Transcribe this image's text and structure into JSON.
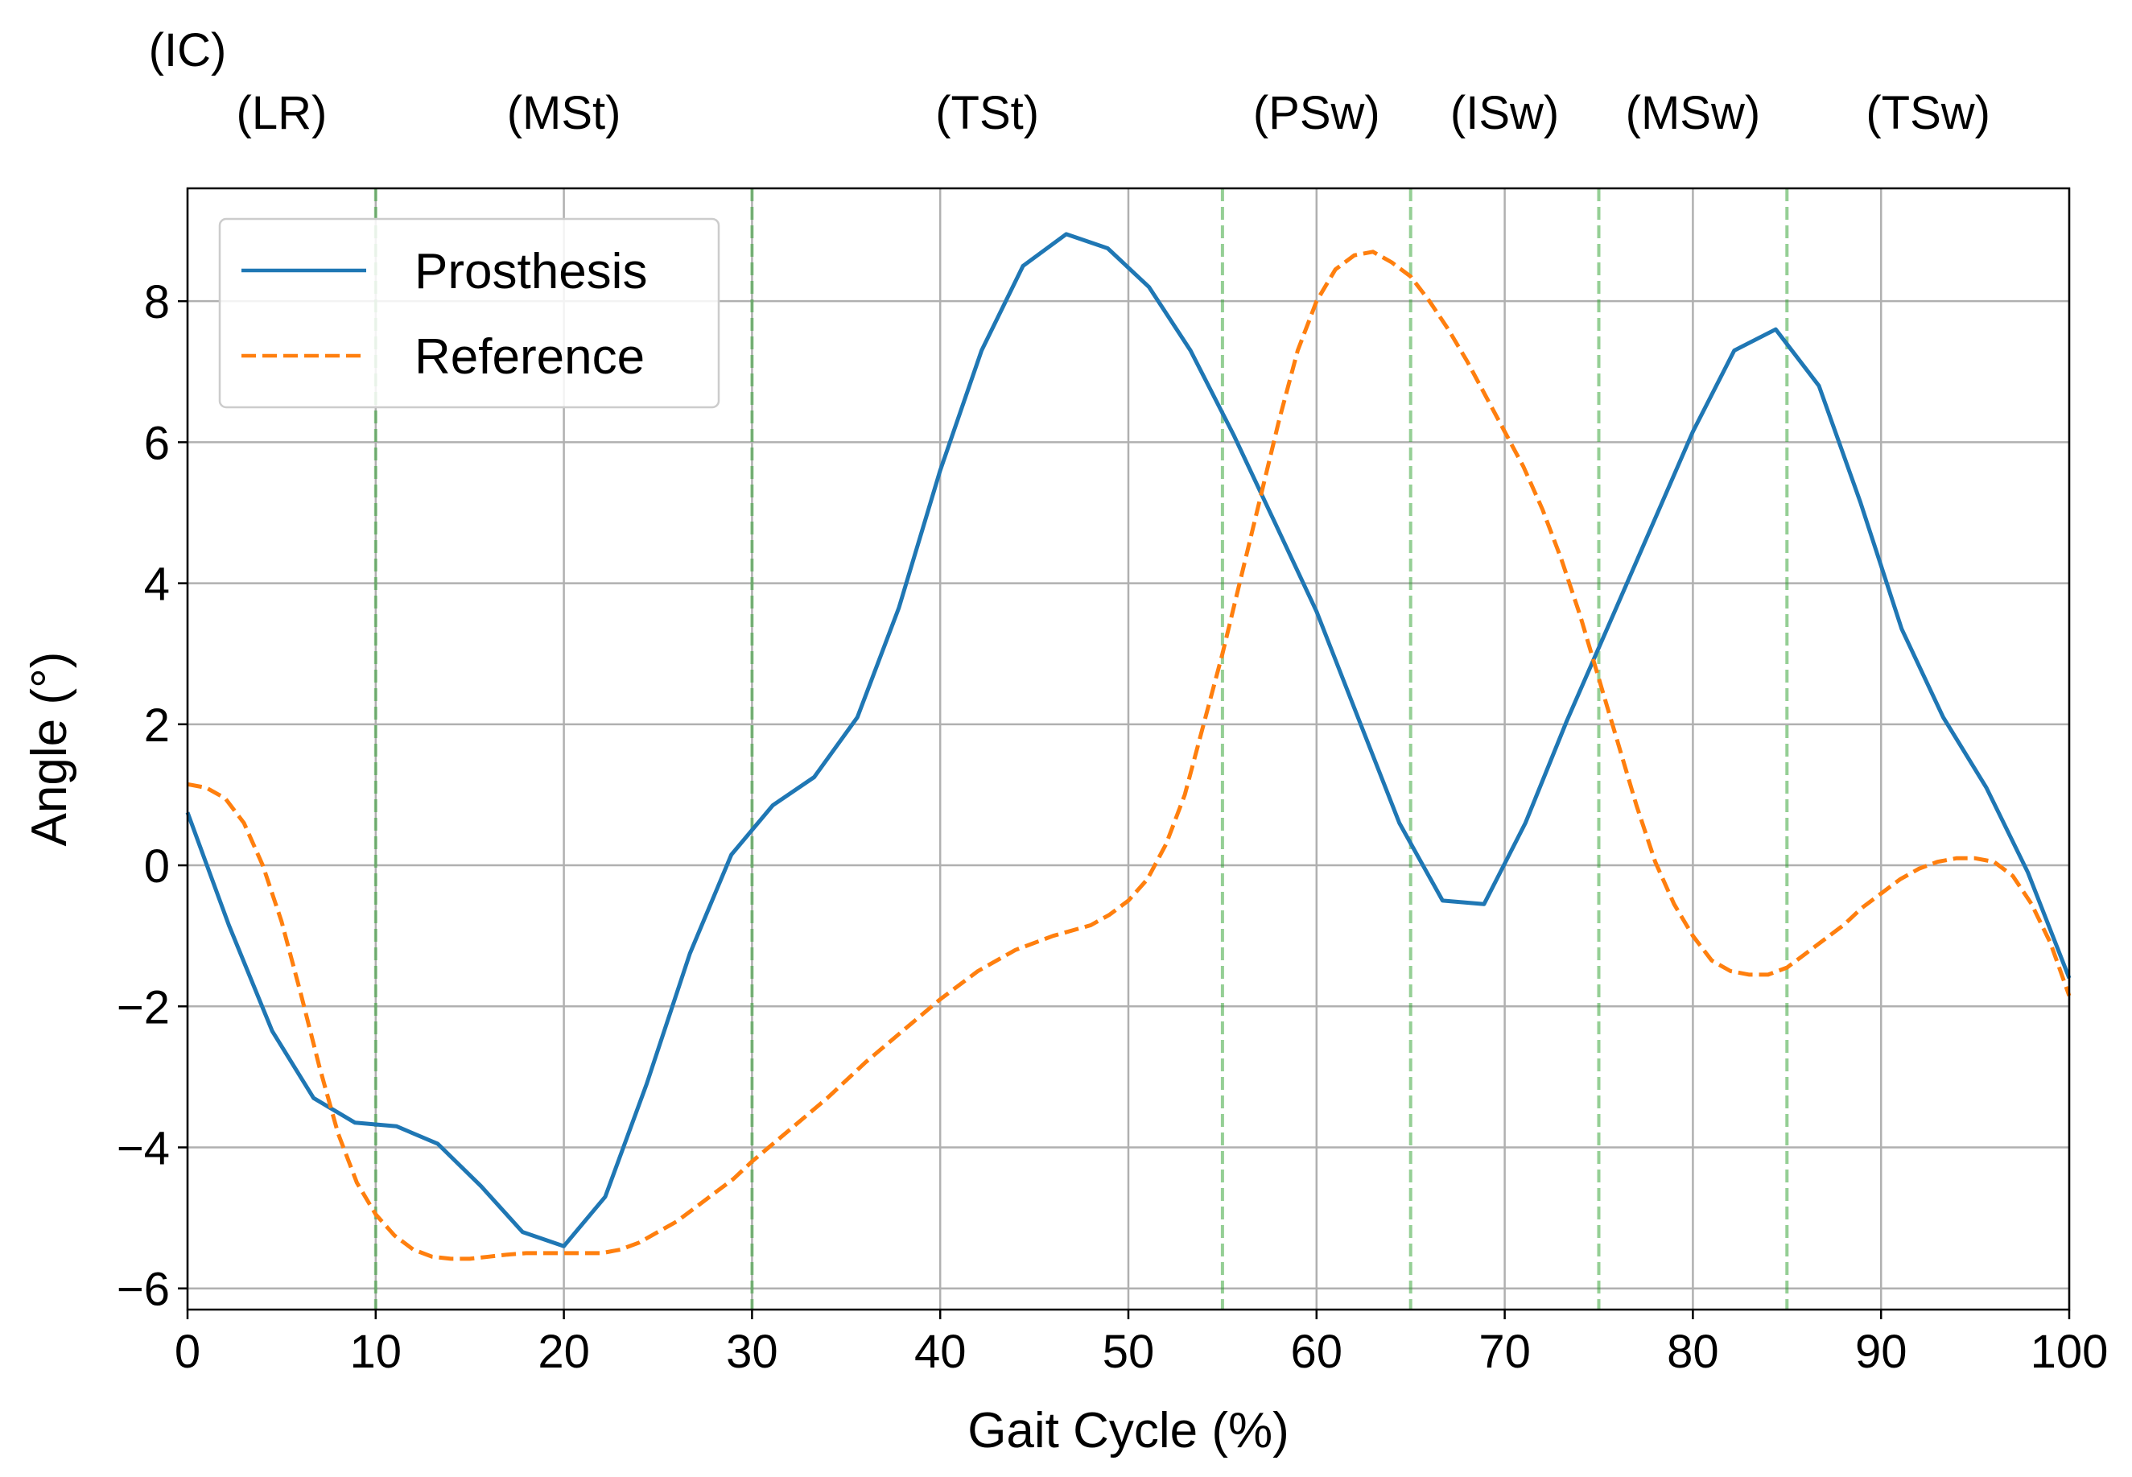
{
  "chart_data": {
    "type": "line",
    "xlabel": "Gait Cycle (%)",
    "ylabel": "Angle (°)",
    "xlim": [
      0,
      100
    ],
    "ylim": [
      -6.3,
      9.6
    ],
    "x_ticks": [
      0,
      10,
      20,
      30,
      40,
      50,
      60,
      70,
      80,
      90,
      100
    ],
    "y_ticks": [
      -6,
      -4,
      -2,
      0,
      2,
      4,
      6,
      8
    ],
    "y_tick_labels": [
      "−6",
      "−4",
      "−2",
      "0",
      "2",
      "4",
      "6",
      "8"
    ],
    "grid": true,
    "legend_position": "top-left",
    "series": [
      {
        "name": "Prosthesis",
        "style": "solid",
        "color": "#1f77b4",
        "x": [
          0,
          2.2,
          4.5,
          6.7,
          8.9,
          11.1,
          13.3,
          15.6,
          17.8,
          20.0,
          22.2,
          24.4,
          26.7,
          28.9,
          31.1,
          33.3,
          35.6,
          37.8,
          40.0,
          42.2,
          44.4,
          46.7,
          48.9,
          51.1,
          53.3,
          55.6,
          57.8,
          60.0,
          62.2,
          64.4,
          66.7,
          68.9,
          71.1,
          73.3,
          75.6,
          77.8,
          80.0,
          82.2,
          84.4,
          86.7,
          88.9,
          91.1,
          93.3,
          95.6,
          97.8,
          100.0
        ],
        "y": [
          0.75,
          -0.85,
          -2.35,
          -3.3,
          -3.65,
          -3.7,
          -3.95,
          -4.55,
          -5.2,
          -5.4,
          -4.7,
          -3.1,
          -1.25,
          0.15,
          0.85,
          1.25,
          2.1,
          3.65,
          5.6,
          7.3,
          8.5,
          8.95,
          8.75,
          8.2,
          7.3,
          6.1,
          4.85,
          3.6,
          2.1,
          0.6,
          -0.5,
          -0.55,
          0.6,
          2.05,
          3.45,
          4.8,
          6.15,
          7.3,
          7.6,
          6.8,
          5.15,
          3.35,
          2.1,
          1.1,
          -0.1,
          -1.6
        ]
      },
      {
        "name": "Reference",
        "style": "dashed",
        "color": "#ff7f0e",
        "x": [
          0,
          1,
          2,
          3,
          4,
          5,
          6,
          7,
          8,
          9,
          10,
          11,
          12,
          13,
          14,
          15,
          16,
          17,
          18,
          19,
          20,
          21,
          22,
          23,
          24,
          25,
          26,
          27,
          28,
          29,
          30,
          32,
          34,
          36,
          38,
          40,
          42,
          44,
          46,
          48,
          49,
          50,
          51,
          52,
          53,
          54,
          55,
          56,
          57,
          58,
          59,
          60,
          61,
          62,
          63,
          64,
          65,
          66,
          67,
          68,
          69,
          70,
          71,
          72,
          73,
          74,
          75,
          76,
          77,
          78,
          79,
          80,
          81,
          82,
          83,
          84,
          85,
          86,
          87,
          88,
          89,
          90,
          91,
          92,
          93,
          94,
          95,
          96,
          97,
          98,
          99,
          100
        ],
        "y": [
          1.15,
          1.1,
          0.95,
          0.6,
          0.0,
          -0.8,
          -1.8,
          -2.85,
          -3.8,
          -4.5,
          -4.95,
          -5.25,
          -5.45,
          -5.55,
          -5.58,
          -5.58,
          -5.55,
          -5.52,
          -5.5,
          -5.5,
          -5.5,
          -5.5,
          -5.5,
          -5.45,
          -5.35,
          -5.2,
          -5.05,
          -4.85,
          -4.65,
          -4.45,
          -4.2,
          -3.75,
          -3.3,
          -2.8,
          -2.35,
          -1.9,
          -1.5,
          -1.2,
          -1.0,
          -0.85,
          -0.7,
          -0.5,
          -0.2,
          0.3,
          1.0,
          2.0,
          3.0,
          4.1,
          5.2,
          6.3,
          7.3,
          8.0,
          8.45,
          8.65,
          8.7,
          8.55,
          8.35,
          8.0,
          7.6,
          7.15,
          6.65,
          6.15,
          5.65,
          5.05,
          4.35,
          3.55,
          2.65,
          1.75,
          0.85,
          0.05,
          -0.55,
          -1.0,
          -1.35,
          -1.5,
          -1.55,
          -1.55,
          -1.45,
          -1.25,
          -1.05,
          -0.85,
          -0.6,
          -0.4,
          -0.2,
          -0.05,
          0.05,
          0.1,
          0.1,
          0.05,
          -0.15,
          -0.55,
          -1.1,
          -1.85
        ]
      }
    ],
    "phase_lines": {
      "color": "#2ca02c",
      "x": [
        10,
        30,
        55,
        65,
        75,
        85
      ]
    },
    "phase_labels": [
      {
        "text": "(IC)",
        "x": 0
      },
      {
        "text": "(LR)",
        "x": 5
      },
      {
        "text": "(MSt)",
        "x": 20
      },
      {
        "text": "(TSt)",
        "x": 42.5
      },
      {
        "text": "(PSw)",
        "x": 60
      },
      {
        "text": "(ISw)",
        "x": 70
      },
      {
        "text": "(MSw)",
        "x": 80
      },
      {
        "text": "(TSw)",
        "x": 92.5
      }
    ]
  }
}
